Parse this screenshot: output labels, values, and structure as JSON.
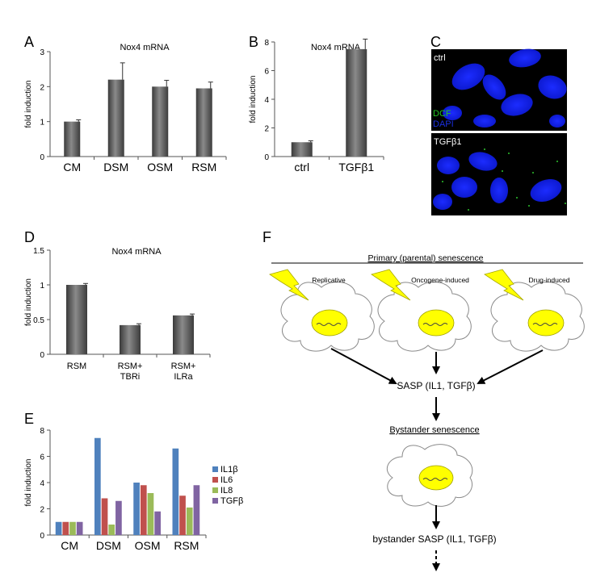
{
  "panels": {
    "A": {
      "letter": "A"
    },
    "B": {
      "letter": "B"
    },
    "C": {
      "letter": "C",
      "label_top": "ctrl",
      "legend_dcf": "DCF",
      "legend_dapi": "DAPI",
      "label_bottom": "TGFβ1"
    },
    "D": {
      "letter": "D"
    },
    "E": {
      "letter": "E"
    },
    "F": {
      "letter": "F"
    }
  },
  "chart_data": [
    {
      "id": "A",
      "type": "bar",
      "title": "Nox4 mRNA",
      "xlabel": "",
      "ylabel": "fold induction",
      "categories": [
        "CM",
        "DSM",
        "OSM",
        "RSM"
      ],
      "values": [
        1.0,
        2.2,
        2.0,
        1.95
      ],
      "errors": [
        0.05,
        0.48,
        0.18,
        0.18
      ],
      "ylim": [
        0,
        3
      ],
      "yticks": [
        "0",
        "1",
        "2",
        "3"
      ]
    },
    {
      "id": "B",
      "type": "bar",
      "title": "Nox4 mRNA",
      "xlabel": "",
      "ylabel": "fold induction",
      "categories": [
        "ctrl",
        "TGFβ1"
      ],
      "values": [
        1.0,
        7.5
      ],
      "errors": [
        0.1,
        0.7
      ],
      "ylim": [
        0,
        8
      ],
      "yticks": [
        "0",
        "2",
        "4",
        "6",
        "8"
      ]
    },
    {
      "id": "D",
      "type": "bar",
      "title": "Nox4 mRNA",
      "xlabel": "",
      "ylabel": "fold induction",
      "categories": [
        [
          "RSM"
        ],
        [
          "RSM+",
          "TBRi"
        ],
        [
          "RSM+",
          "ILRa"
        ]
      ],
      "values": [
        1.0,
        0.42,
        0.56
      ],
      "errors": [
        0.02,
        0.02,
        0.02
      ],
      "ylim": [
        0,
        1.5
      ],
      "yticks": [
        "0",
        "0.5",
        "1",
        "1.5"
      ]
    },
    {
      "id": "E",
      "type": "bar",
      "title": "",
      "xlabel": "",
      "ylabel": "fold induction",
      "categories": [
        "CM",
        "DSM",
        "OSM",
        "RSM"
      ],
      "series": [
        {
          "name": "IL1β",
          "color": "#4f81bd",
          "values": [
            1.0,
            7.4,
            4.0,
            6.6
          ]
        },
        {
          "name": "IL6",
          "color": "#c0504d",
          "values": [
            1.0,
            2.8,
            3.8,
            3.0
          ]
        },
        {
          "name": "IL8",
          "color": "#9bbb59",
          "values": [
            1.0,
            0.8,
            3.2,
            2.1
          ]
        },
        {
          "name": "TGFβ",
          "color": "#8064a2",
          "values": [
            1.0,
            2.6,
            1.8,
            3.8
          ]
        }
      ],
      "ylim": [
        0,
        8
      ],
      "yticks": [
        "0",
        "2",
        "4",
        "6",
        "8"
      ],
      "legend_position": "right"
    }
  ],
  "diagram": {
    "header": "Primary (parental) senescence",
    "cells": [
      "Replicative",
      "Oncogene-induced",
      "Drug-induced"
    ],
    "sasp": "SASP (IL1, TGFβ)",
    "bystander": "Bystander senescence",
    "bystander_sasp": "bystander SASP (IL1, TGFβ)"
  }
}
